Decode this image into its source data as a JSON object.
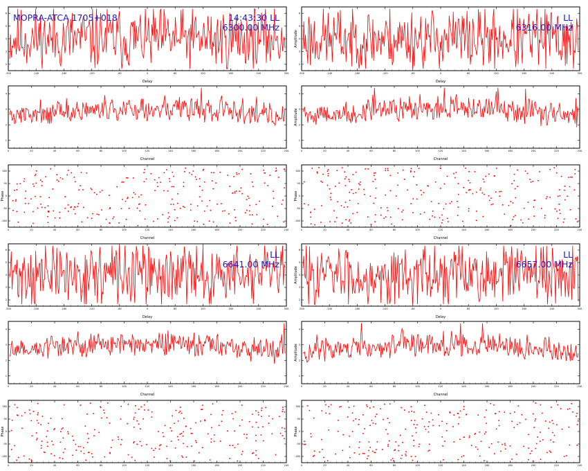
{
  "colors": {
    "trace": "#ff0000",
    "annotation": "#1a1acc",
    "axis": "#000000"
  },
  "annotations": [
    {
      "panel": 0,
      "text": "MOPRA-ATCA 1705+018",
      "pos": "top-left"
    },
    {
      "panel": 0,
      "text": "14:43:30   LL",
      "pos": "top-right-1"
    },
    {
      "panel": 0,
      "text": "6300.00 MHz",
      "pos": "top-right-2"
    },
    {
      "panel": 1,
      "text": "LL",
      "pos": "top-right-1"
    },
    {
      "panel": 1,
      "text": "6316.00 MHz",
      "pos": "top-right-2"
    },
    {
      "panel": 6,
      "text": "LL",
      "pos": "top-right-1"
    },
    {
      "panel": 6,
      "text": "6641.00 MHz",
      "pos": "top-right-2"
    },
    {
      "panel": 7,
      "text": "LL",
      "pos": "top-right-1"
    },
    {
      "panel": 7,
      "text": "6657.00 MHz",
      "pos": "top-right-2"
    }
  ],
  "chart_data": [
    {
      "type": "line",
      "mode": "delay",
      "seed": 11,
      "n": 340,
      "xlabel": "Delay",
      "ylabel": "",
      "xticks": [
        "-300",
        "-240",
        "-180",
        "-120",
        "-60",
        "0",
        "60",
        "120",
        "180",
        "240",
        "300"
      ],
      "yticks": [
        "6",
        "5",
        "4",
        "3",
        "2"
      ],
      "xlim": [
        -300,
        300
      ]
    },
    {
      "type": "line",
      "mode": "delay",
      "seed": 23,
      "n": 340,
      "xlabel": "Delay",
      "ylabel": "Amplitude",
      "xticks": [
        "-300",
        "-240",
        "-180",
        "-120",
        "-60",
        "0",
        "60",
        "120",
        "180",
        "240",
        "300"
      ],
      "yticks": [
        "6",
        "5",
        "4",
        "3",
        "2"
      ],
      "xlim": [
        -300,
        300
      ]
    },
    {
      "type": "line",
      "mode": "channel",
      "seed": 37,
      "n": 340,
      "xlabel": "Channel",
      "ylabel": "",
      "xticks": [
        "0",
        "20",
        "40",
        "60",
        "80",
        "100",
        "120",
        "140",
        "160",
        "180",
        "200",
        "220",
        "240"
      ],
      "yticks": [
        "4",
        "3",
        "2",
        "1"
      ],
      "xlim": [
        0,
        256
      ]
    },
    {
      "type": "line",
      "mode": "channel",
      "seed": 41,
      "n": 340,
      "xlabel": "Channel",
      "ylabel": "Amplitude",
      "xticks": [
        "0",
        "20",
        "40",
        "60",
        "80",
        "100",
        "120",
        "140",
        "160",
        "180",
        "200",
        "220",
        "240"
      ],
      "yticks": [
        "4",
        "3",
        "2",
        "1"
      ],
      "xlim": [
        0,
        256
      ]
    },
    {
      "type": "scatter",
      "mode": "phase",
      "seed": 53,
      "n": 260,
      "xlabel": "Channel",
      "ylabel": "Phase",
      "xticks": [
        "0",
        "20",
        "40",
        "60",
        "80",
        "100",
        "120",
        "140",
        "160",
        "180",
        "200",
        "220",
        "240"
      ],
      "yticks": [
        "180",
        "90",
        "0",
        "-90",
        "-180"
      ],
      "xlim": [
        0,
        256
      ],
      "ylim": [
        -180,
        180
      ]
    },
    {
      "type": "scatter",
      "mode": "phase",
      "seed": 67,
      "n": 260,
      "xlabel": "Channel",
      "ylabel": "Phase",
      "xticks": [
        "0",
        "20",
        "40",
        "60",
        "80",
        "100",
        "120",
        "140",
        "160",
        "180",
        "200",
        "220",
        "240"
      ],
      "yticks": [
        "180",
        "90",
        "0",
        "-90",
        "-180"
      ],
      "xlim": [
        0,
        256
      ],
      "ylim": [
        -180,
        180
      ]
    },
    {
      "type": "line",
      "mode": "delay",
      "seed": 71,
      "n": 340,
      "xlabel": "Delay",
      "ylabel": "",
      "xticks": [
        "-300",
        "-240",
        "-180",
        "-120",
        "-60",
        "0",
        "60",
        "120",
        "180",
        "240",
        "300"
      ],
      "yticks": [
        "6",
        "5",
        "4",
        "3",
        "2"
      ],
      "xlim": [
        -300,
        300
      ]
    },
    {
      "type": "line",
      "mode": "delay",
      "seed": 83,
      "n": 340,
      "xlabel": "Delay",
      "ylabel": "Amplitude",
      "xticks": [
        "-300",
        "-240",
        "-180",
        "-120",
        "-60",
        "0",
        "60",
        "120",
        "180",
        "240",
        "300"
      ],
      "yticks": [
        "6",
        "5",
        "4",
        "3",
        "2"
      ],
      "xlim": [
        -300,
        300
      ]
    },
    {
      "type": "line",
      "mode": "channel",
      "seed": 97,
      "n": 340,
      "xlabel": "Channel",
      "ylabel": "",
      "xticks": [
        "0",
        "20",
        "40",
        "60",
        "80",
        "100",
        "120",
        "140",
        "160",
        "180",
        "200",
        "220",
        "240"
      ],
      "yticks": [
        "4",
        "3",
        "2",
        "1"
      ],
      "xlim": [
        0,
        256
      ]
    },
    {
      "type": "line",
      "mode": "channel",
      "seed": 101,
      "n": 340,
      "xlabel": "Channel",
      "ylabel": "Amplitude",
      "xticks": [
        "0",
        "20",
        "40",
        "60",
        "80",
        "100",
        "120",
        "140",
        "160",
        "180",
        "200",
        "220",
        "240"
      ],
      "yticks": [
        "4",
        "3",
        "2",
        "1"
      ],
      "xlim": [
        0,
        256
      ]
    },
    {
      "type": "scatter",
      "mode": "phase",
      "seed": 113,
      "n": 260,
      "xlabel": "Channel",
      "ylabel": "Phase",
      "xticks": [
        "0",
        "20",
        "40",
        "60",
        "80",
        "100",
        "120",
        "140",
        "160",
        "180",
        "200",
        "220",
        "240"
      ],
      "yticks": [
        "180",
        "90",
        "0",
        "-90",
        "-180"
      ],
      "xlim": [
        0,
        256
      ],
      "ylim": [
        -180,
        180
      ]
    },
    {
      "type": "scatter",
      "mode": "phase",
      "seed": 127,
      "n": 260,
      "xlabel": "Channel",
      "ylabel": "Phase",
      "xticks": [
        "0",
        "20",
        "40",
        "60",
        "80",
        "100",
        "120",
        "140",
        "160",
        "180",
        "200",
        "220",
        "240"
      ],
      "yticks": [
        "180",
        "90",
        "0",
        "-90",
        "-180"
      ],
      "xlim": [
        0,
        256
      ],
      "ylim": [
        -180,
        180
      ]
    }
  ]
}
